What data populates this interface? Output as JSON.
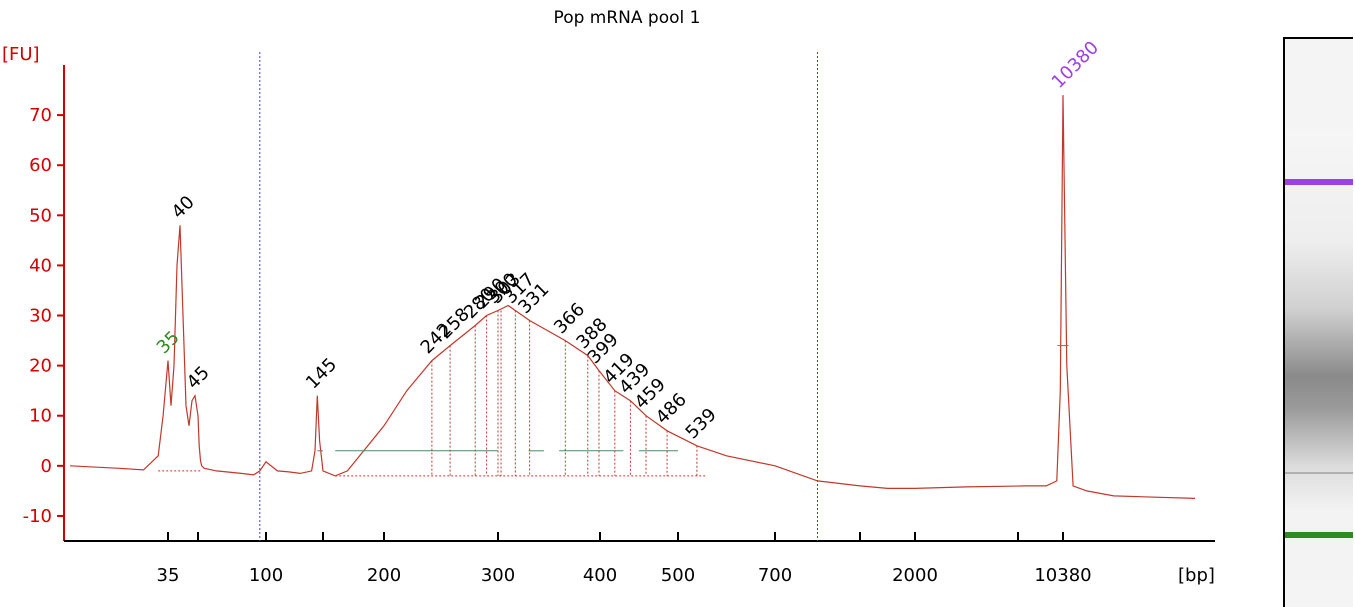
{
  "chart_data": {
    "type": "line",
    "title": "Pop mRNA pool 1",
    "ylabel": "[FU]",
    "xlabel": "[bp]",
    "ylim": [
      -15,
      80
    ],
    "y_ticks": [
      -10,
      0,
      10,
      20,
      30,
      40,
      50,
      60,
      70
    ],
    "x_ticks": [
      "35",
      "100",
      "200",
      "300",
      "400",
      "500",
      "700",
      "2000",
      "10380"
    ],
    "x_minor_ticks": [
      "45",
      "150",
      "1000",
      "4000"
    ],
    "x_marker_positions_bp": [
      95,
      850
    ],
    "grid": false,
    "series": [
      {
        "color": "#c0392b",
        "x": [
          15,
          25,
          30,
          33,
          34,
          35,
          36,
          37,
          38,
          39,
          40,
          41,
          42,
          43,
          44,
          45,
          46,
          47,
          48,
          50,
          60,
          80,
          90,
          95,
          100,
          110,
          120,
          130,
          140,
          143,
          145,
          147,
          150,
          160,
          170,
          200,
          220,
          242,
          258,
          280,
          290,
          300,
          310,
          317,
          331,
          366,
          388,
          399,
          419,
          439,
          459,
          486,
          539,
          600,
          700,
          850,
          1000,
          1500,
          2000,
          3000,
          5000,
          8000,
          9500,
          10000,
          10380,
          10800,
          11500,
          13000,
          16000,
          25000
        ],
        "y": [
          0,
          -0.5,
          -0.8,
          2,
          10,
          21,
          12,
          20,
          40,
          48,
          30,
          12,
          8,
          13,
          14,
          10,
          4,
          1,
          0,
          -0.5,
          -1,
          -1.5,
          -1.8,
          -1,
          0.8,
          -1,
          -1.2,
          -1.5,
          -1,
          3,
          14,
          5,
          -1,
          -2,
          -1,
          8,
          15,
          21,
          24,
          28,
          30,
          31,
          32,
          31,
          29,
          25,
          22,
          19,
          15,
          13,
          10,
          7,
          4,
          2,
          0,
          -3,
          -4,
          -4.5,
          -4.5,
          -4.2,
          -4,
          -4,
          -3,
          15,
          74,
          20,
          -4,
          -5,
          -6,
          -6.5
        ]
      }
    ],
    "peak_labels": [
      {
        "label": "35",
        "bp": 35,
        "fu": 21,
        "color": "#2e8b22"
      },
      {
        "label": "40",
        "bp": 40,
        "fu": 48,
        "color": "#000000"
      },
      {
        "label": "45",
        "bp": 45,
        "fu": 14,
        "color": "#000000"
      },
      {
        "label": "145",
        "bp": 145,
        "fu": 14,
        "color": "#000000"
      },
      {
        "label": "242",
        "bp": 242,
        "fu": 21,
        "color": "#000000"
      },
      {
        "label": "258",
        "bp": 258,
        "fu": 24,
        "color": "#000000"
      },
      {
        "label": "280",
        "bp": 280,
        "fu": 28,
        "color": "#000000"
      },
      {
        "label": "290",
        "bp": 290,
        "fu": 30,
        "color": "#000000"
      },
      {
        "label": "300",
        "bp": 300,
        "fu": 31,
        "color": "#000000"
      },
      {
        "label": "303",
        "bp": 303,
        "fu": 31,
        "color": "#000000"
      },
      {
        "label": "317",
        "bp": 317,
        "fu": 31,
        "color": "#000000"
      },
      {
        "label": "331",
        "bp": 331,
        "fu": 29,
        "color": "#000000"
      },
      {
        "label": "366",
        "bp": 366,
        "fu": 25,
        "color": "#000000"
      },
      {
        "label": "388",
        "bp": 388,
        "fu": 22,
        "color": "#000000"
      },
      {
        "label": "399",
        "bp": 399,
        "fu": 19,
        "color": "#000000"
      },
      {
        "label": "419",
        "bp": 419,
        "fu": 15,
        "color": "#000000"
      },
      {
        "label": "439",
        "bp": 439,
        "fu": 13,
        "color": "#000000"
      },
      {
        "label": "459",
        "bp": 459,
        "fu": 10,
        "color": "#000000"
      },
      {
        "label": "486",
        "bp": 486,
        "fu": 7,
        "color": "#000000"
      },
      {
        "label": "539",
        "bp": 539,
        "fu": 4,
        "color": "#000000"
      },
      {
        "label": "10380",
        "bp": 10380,
        "fu": 74,
        "color": "#a040e0"
      }
    ]
  },
  "gel": {
    "upper_marker_color": "#a040e0",
    "lower_marker_color": "#2e8b22"
  }
}
